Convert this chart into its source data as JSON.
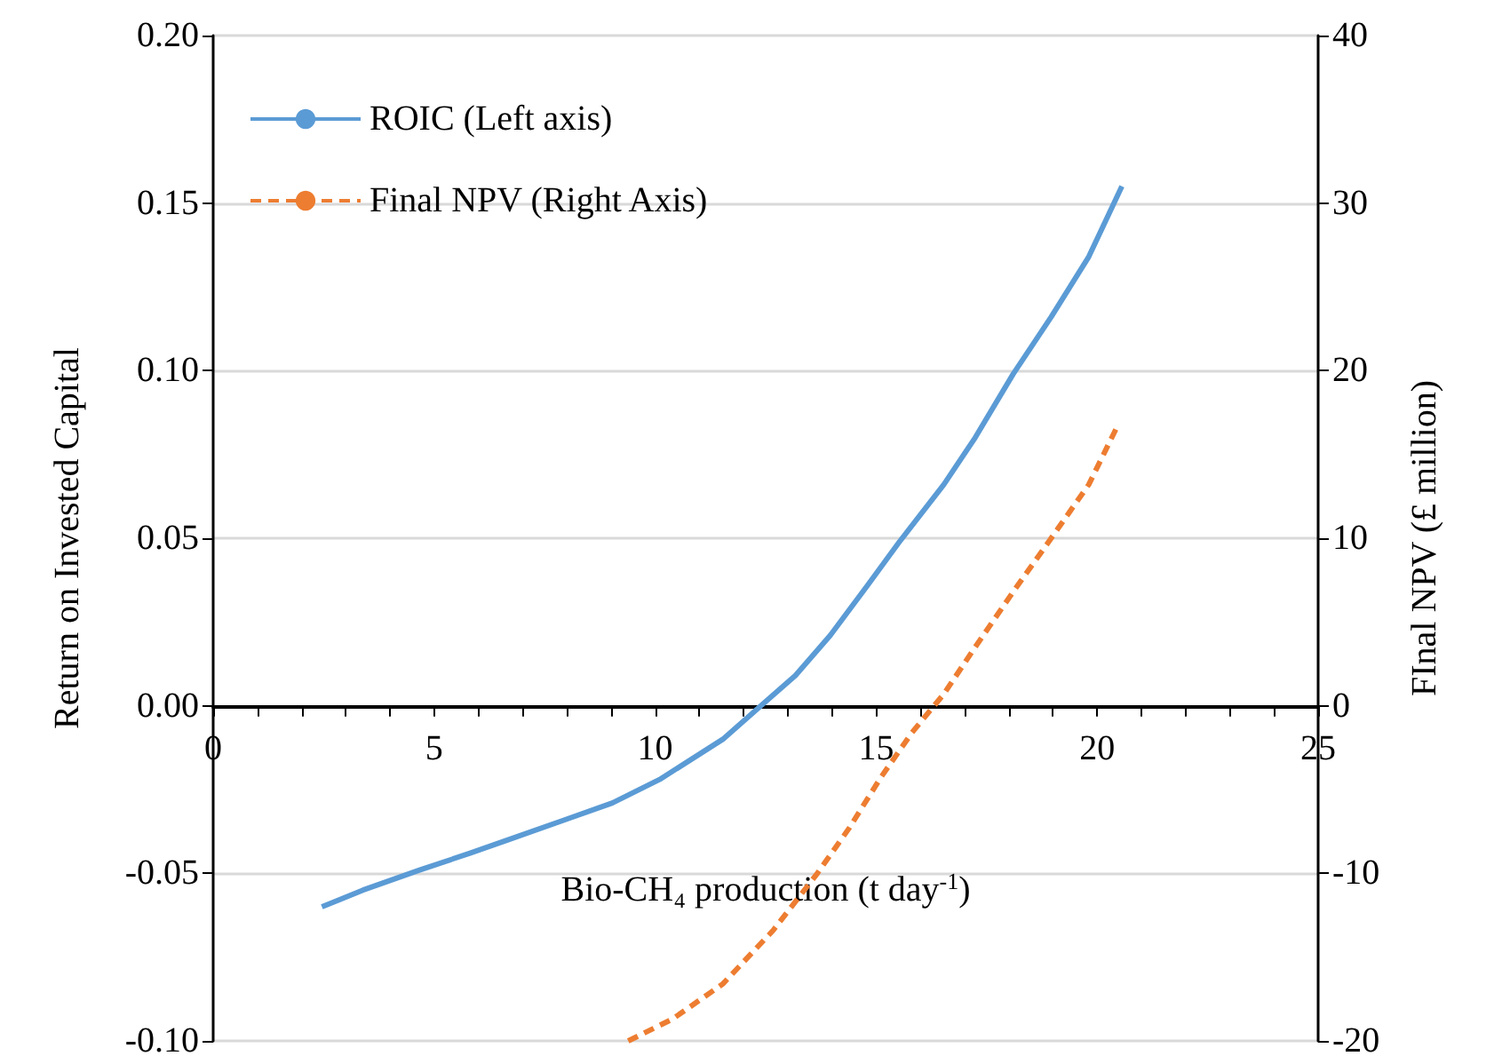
{
  "chart_data": {
    "type": "line",
    "xlabel": "Bio-CH₄ production (t day$^{-1}$)",
    "ylabel": "Return on Invested Capital",
    "y2label": "FInal NPV (£ million)",
    "xlim": [
      0,
      25
    ],
    "xticks": [
      0,
      {
        "value": 1,
        "label": null
      },
      {
        "value": 2,
        "label": null
      },
      {
        "value": 3,
        "label": null
      },
      {
        "value": 4,
        "label": null
      },
      5,
      {
        "value": 6,
        "label": null
      },
      {
        "value": 7,
        "label": null
      },
      {
        "value": 8,
        "label": null
      },
      {
        "value": 9,
        "label": null
      },
      10,
      {
        "value": 11,
        "label": null
      },
      {
        "value": 12,
        "label": null
      },
      {
        "value": 13,
        "label": null
      },
      {
        "value": 14,
        "label": null
      },
      15,
      {
        "value": 16,
        "label": null
      },
      {
        "value": 17,
        "label": null
      },
      {
        "value": 18,
        "label": null
      },
      {
        "value": 19,
        "label": null
      },
      20,
      {
        "value": 21,
        "label": null
      },
      {
        "value": 22,
        "label": null
      },
      {
        "value": 23,
        "label": null
      },
      {
        "value": 24,
        "label": null
      },
      25
    ],
    "ylim": [
      -0.1,
      0.2
    ],
    "yticks": [
      {
        "value": -0.1,
        "label": "-0.10"
      },
      {
        "value": -0.05,
        "label": "-0.05"
      },
      {
        "value": 0,
        "label": "0.00"
      },
      {
        "value": 0.05,
        "label": "0.05"
      },
      {
        "value": 0.1,
        "label": "0.10"
      },
      {
        "value": 0.15,
        "label": "0.15"
      },
      {
        "value": 0.2,
        "label": "0.20"
      }
    ],
    "y2lim": [
      -20,
      40
    ],
    "y2ticks": [
      -20,
      -10,
      0,
      10,
      20,
      30,
      40
    ],
    "grid": "y",
    "legend": "top left",
    "series": [
      {
        "name": "ROIC (Left axis)",
        "color": "#5b9bd5",
        "line_style": "solid",
        "x": [
          2.46,
          3.39,
          4.67,
          5.81,
          6.67,
          7.96,
          9.03,
          10.1,
          11.53,
          12.39,
          13.17,
          13.96,
          14.81,
          15.53,
          16.53,
          17.24,
          18.1,
          18.96,
          19.81,
          20.56
        ],
        "values": [
          -0.06,
          -0.055,
          -0.049,
          -0.044,
          -0.04,
          -0.034,
          -0.029,
          -0.022,
          -0.01,
          0,
          0.009,
          0.021,
          0.036,
          0.049,
          0.066,
          0.08,
          0.099,
          0.116,
          0.134,
          0.155
        ]
      },
      {
        "name": "Final NPV (Right Axis)",
        "color": "#ed7d31",
        "line_style": "dashed",
        "axis": "y2",
        "x": [
          9.39,
          10.39,
          11.53,
          12.67,
          13.67,
          14.39,
          15.1,
          15.81,
          16.53,
          17.24,
          18.1,
          18.96,
          19.81,
          20.46
        ],
        "values": [
          -20,
          -18.7,
          -16.6,
          -13.4,
          -10,
          -7.3,
          -4.3,
          -1.6,
          0.7,
          3.5,
          6.8,
          10,
          13.2,
          16.7
        ]
      }
    ]
  }
}
